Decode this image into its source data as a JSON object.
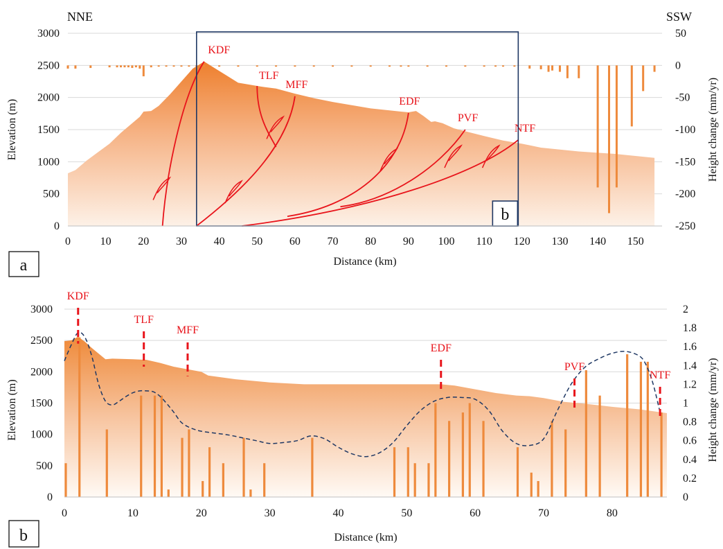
{
  "labels": {
    "direction_left": "NNE",
    "direction_right": "SSW"
  },
  "colors": {
    "terrain_dark": "#ef8a3a",
    "terrain_light": "#fbe0cc",
    "bar": "#ee8a3c",
    "fault": "#e8141b",
    "axis_box": "#1f3864",
    "dashed_curve": "#1f3864"
  },
  "chart_data": [
    {
      "panel": "a",
      "type": "area",
      "xlabel": "Distance (km)",
      "ylabel": "Elevation (m)",
      "ylabel2": "Height change (mm/yr)",
      "xlim": [
        0,
        157
      ],
      "ylim": [
        0,
        3000
      ],
      "y2lim": [
        -250,
        50
      ],
      "xticks": [
        0,
        10,
        20,
        30,
        40,
        50,
        60,
        70,
        80,
        90,
        100,
        110,
        120,
        130,
        140,
        150
      ],
      "yticks": [
        0,
        500,
        1000,
        1500,
        2000,
        2500,
        3000
      ],
      "y2ticks": [
        -250,
        -200,
        -150,
        -100,
        -50,
        0,
        50
      ],
      "elevation": {
        "x": [
          0,
          2,
          5,
          8,
          11,
          14,
          17,
          19,
          20,
          22,
          24,
          27,
          30,
          33,
          36,
          39,
          42,
          45,
          48,
          51,
          55,
          60,
          65,
          70,
          75,
          80,
          85,
          88,
          90,
          92,
          94,
          96,
          97,
          99,
          102,
          106,
          110,
          115,
          120,
          125,
          130,
          135,
          140,
          145,
          150,
          155
        ],
        "y": [
          820,
          870,
          1020,
          1150,
          1280,
          1450,
          1600,
          1700,
          1780,
          1790,
          1870,
          2050,
          2250,
          2450,
          2560,
          2450,
          2340,
          2230,
          2200,
          2170,
          2140,
          2060,
          1990,
          1930,
          1880,
          1830,
          1800,
          1780,
          1770,
          1790,
          1710,
          1620,
          1630,
          1600,
          1520,
          1460,
          1400,
          1330,
          1280,
          1220,
          1190,
          1160,
          1140,
          1120,
          1090,
          1060
        ]
      },
      "height_change_bars": {
        "x": [
          0,
          2,
          6,
          11,
          13,
          14,
          15,
          16,
          17,
          18,
          19,
          20,
          22,
          24,
          26,
          28,
          30,
          32,
          34,
          36,
          40,
          45,
          50,
          55,
          60,
          65,
          70,
          75,
          80,
          85,
          88,
          90,
          95,
          100,
          105,
          110,
          113,
          115,
          118,
          122,
          125,
          127,
          128,
          130,
          132,
          135,
          140,
          143,
          145,
          149,
          152,
          155
        ],
        "values": [
          -5,
          -5,
          -4,
          -3,
          -3,
          -3,
          -3,
          -3,
          -4,
          -3,
          -5,
          -17,
          -3,
          -2,
          -2,
          -2,
          -2,
          -2,
          -2,
          -2,
          -2,
          -2,
          -2,
          -2,
          -2,
          -2,
          -2,
          -2,
          -2,
          -2,
          -2,
          -2,
          -2,
          -2,
          -2,
          -2,
          -2,
          -2,
          -2,
          -5,
          -6,
          -10,
          -8,
          -10,
          -20,
          -20,
          -190,
          -230,
          -190,
          -95,
          -40,
          -10
        ]
      },
      "faults": [
        "KDF",
        "TLF",
        "MFF",
        "EDF",
        "PVF",
        "NTF"
      ],
      "inset_box": {
        "label": "b",
        "x_range": [
          34,
          119
        ]
      },
      "panel_label": "a"
    },
    {
      "panel": "b",
      "type": "area",
      "xlabel": "Distance (km)",
      "ylabel": "Elevation (m)",
      "ylabel2": "Height change (mm/yr)",
      "xlim": [
        0,
        88
      ],
      "ylim": [
        0,
        3000
      ],
      "y2lim": [
        0,
        2
      ],
      "xticks": [
        0,
        10,
        20,
        30,
        40,
        50,
        60,
        70,
        80
      ],
      "yticks": [
        0,
        500,
        1000,
        1500,
        2000,
        2500,
        3000
      ],
      "y2ticks": [
        0,
        0.2,
        0.4,
        0.6,
        0.8,
        1,
        1.2,
        1.4,
        1.6,
        1.8,
        2
      ],
      "elevation": {
        "x": [
          0,
          1,
          2,
          3,
          4,
          5,
          6,
          7,
          10,
          12,
          14,
          16,
          18,
          20,
          21,
          25,
          30,
          35,
          40,
          45,
          50,
          55,
          57,
          60,
          63,
          66,
          68,
          70,
          73,
          76,
          80,
          84,
          88
        ],
        "y": [
          2490,
          2500,
          2560,
          2480,
          2380,
          2290,
          2200,
          2210,
          2200,
          2190,
          2140,
          2080,
          2040,
          2000,
          1940,
          1880,
          1830,
          1800,
          1800,
          1800,
          1800,
          1800,
          1780,
          1720,
          1660,
          1620,
          1610,
          1580,
          1520,
          1490,
          1440,
          1400,
          1340
        ]
      },
      "height_change_bars": {
        "x": [
          0.2,
          2.2,
          6.2,
          11.2,
          13.2,
          14.2,
          15.2,
          17.2,
          18.2,
          20.2,
          21.2,
          23.2,
          26.2,
          27.2,
          29.2,
          36.2,
          48.2,
          50.2,
          51.2,
          53.2,
          54.2,
          56.2,
          58.2,
          59.2,
          61.2,
          66.2,
          68.2,
          69.2,
          71.2,
          73.2,
          76.2,
          78.2,
          82.2,
          84.2,
          85.2,
          87.2
        ],
        "values": [
          0.36,
          1.7,
          0.72,
          1.08,
          1.08,
          1.08,
          0.08,
          0.63,
          0.72,
          0.17,
          0.53,
          0.36,
          0.63,
          0.08,
          0.36,
          0.63,
          0.53,
          0.53,
          0.36,
          0.36,
          1.0,
          0.81,
          0.9,
          1.0,
          0.81,
          0.53,
          0.26,
          0.17,
          0.81,
          0.72,
          1.35,
          1.08,
          1.52,
          1.44,
          1.44,
          0.9
        ]
      },
      "trend_curve": {
        "x": [
          0,
          1,
          2,
          3,
          4,
          5,
          6,
          7,
          8,
          9,
          10,
          11,
          12,
          13,
          14,
          15,
          16,
          17,
          18,
          19,
          20,
          22,
          24,
          26,
          28,
          30,
          32,
          34,
          36,
          38,
          40,
          42,
          44,
          46,
          48,
          50,
          52,
          54,
          56,
          58,
          60,
          62,
          64,
          66,
          68,
          70,
          72,
          74,
          76,
          78,
          80,
          82,
          84,
          85,
          86,
          87
        ],
        "y": [
          1.45,
          1.62,
          1.75,
          1.7,
          1.5,
          1.2,
          1.02,
          0.98,
          1.02,
          1.07,
          1.11,
          1.13,
          1.13,
          1.12,
          1.07,
          0.99,
          0.9,
          0.8,
          0.75,
          0.72,
          0.7,
          0.68,
          0.66,
          0.63,
          0.6,
          0.57,
          0.58,
          0.6,
          0.65,
          0.62,
          0.53,
          0.46,
          0.43,
          0.47,
          0.58,
          0.76,
          0.92,
          1.02,
          1.06,
          1.06,
          1.04,
          0.92,
          0.7,
          0.57,
          0.55,
          0.62,
          0.92,
          1.2,
          1.38,
          1.47,
          1.53,
          1.55,
          1.5,
          1.4,
          1.2,
          0.9
        ]
      },
      "faults": [
        {
          "name": "KDF",
          "x": 2.0
        },
        {
          "name": "TLF",
          "x": 11.6
        },
        {
          "name": "MFF",
          "x": 18.0
        },
        {
          "name": "EDF",
          "x": 55.0
        },
        {
          "name": "PVF",
          "x": 74.5
        },
        {
          "name": "NTF",
          "x": 87.0
        }
      ],
      "panel_label": "b"
    }
  ]
}
